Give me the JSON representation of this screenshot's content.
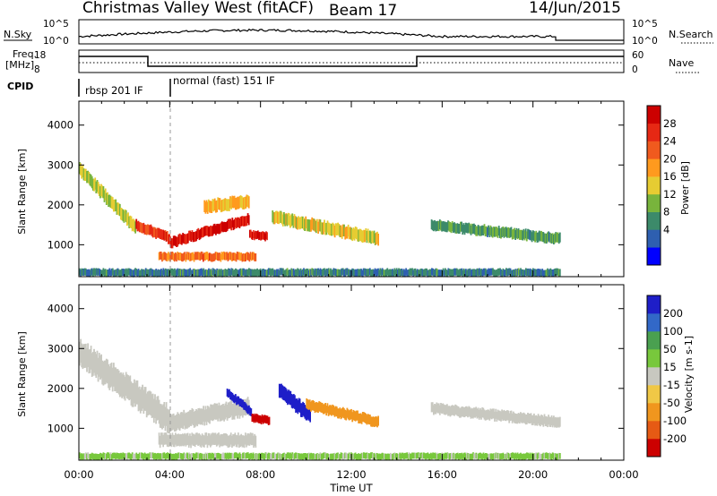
{
  "header": {
    "radar": "Christmas Valley West (fitACF)",
    "beam": "Beam 17",
    "date": "14/Jun/2015"
  },
  "top_panels": {
    "nsky_label": "N.Sky",
    "nsearch_label": "N.Search",
    "freq_label_1": "Freq.",
    "freq_label_2": "[MHz]",
    "nave_label": "Nave",
    "cpid_label": "CPID",
    "noise_ticks_left": [
      "10^5",
      "10^0"
    ],
    "noise_ticks_right": [
      "10^5",
      "10^0"
    ],
    "freq_ticks": [
      "18",
      "8"
    ],
    "nave_ticks": [
      "60",
      "0"
    ],
    "cpid_segments": [
      {
        "label": "rbsp 201 IF",
        "start_h": 0,
        "end_h": 3.7
      },
      {
        "label": "normal (fast) 151 IF",
        "start_h": 3.7,
        "end_h": 24
      }
    ]
  },
  "panels": {
    "power": {
      "ylabel": "Slant Range [km]",
      "yticks": [
        "4000",
        "3000",
        "2000",
        "1000"
      ],
      "cbar_label": "Power [dB]",
      "cbar_ticks": [
        "28",
        "24",
        "20",
        "16",
        "12",
        "8",
        "4"
      ]
    },
    "velocity": {
      "ylabel": "Slant Range [km]",
      "yticks": [
        "4000",
        "3000",
        "2000",
        "1000"
      ],
      "cbar_label": "Velocity [m s-1]",
      "cbar_ticks": [
        "200",
        "100",
        "50",
        "15",
        "-15",
        "-50",
        "-100",
        "-200"
      ]
    }
  },
  "xaxis": {
    "ticks": [
      "00:00",
      "04:00",
      "08:00",
      "12:00",
      "16:00",
      "20:00",
      "00:00"
    ],
    "label": "Time UT"
  },
  "colors": {
    "power": [
      "#0000ff",
      "#2e5fb0",
      "#3c8a6a",
      "#78b43c",
      "#e6cc32",
      "#ff9a1e",
      "#f05a1e",
      "#e62814",
      "#cc0000"
    ],
    "velocity": [
      "#1e1ec8",
      "#3268c8",
      "#4aa050",
      "#78c83c",
      "#c8c8c0",
      "#f0c846",
      "#f0961e",
      "#e65a14",
      "#cc0000"
    ]
  },
  "chart_data": [
    {
      "type": "heatmap",
      "title": "Christmas Valley West (fitACF) Beam 17 14/Jun/2015",
      "xlabel": "Time UT",
      "ylabel": "Slant Range [km]",
      "xlim": [
        0,
        24
      ],
      "ylim": [
        200,
        4600
      ],
      "colorbar": {
        "label": "Power [dB]",
        "range": [
          0,
          32
        ]
      },
      "echo_regions": [
        {
          "t0": 0.0,
          "t1": 2.5,
          "r0": 2900,
          "r1": 1400,
          "thick": 300,
          "power": 14
        },
        {
          "t0": 2.5,
          "t1": 4.0,
          "r0": 1500,
          "r1": 1150,
          "thick": 250,
          "power": 26
        },
        {
          "t0": 4.0,
          "t1": 7.5,
          "r0": 1050,
          "r1": 1650,
          "thick": 250,
          "power": 29
        },
        {
          "t0": 3.5,
          "t1": 7.8,
          "r0": 700,
          "r1": 700,
          "thick": 200,
          "power": 22
        },
        {
          "t0": 5.5,
          "t1": 7.5,
          "r0": 1950,
          "r1": 2100,
          "thick": 300,
          "power": 18
        },
        {
          "t0": 7.5,
          "t1": 8.3,
          "r0": 1250,
          "r1": 1200,
          "thick": 200,
          "power": 28
        },
        {
          "t0": 8.5,
          "t1": 13.2,
          "r0": 1700,
          "r1": 1150,
          "thick": 300,
          "power": 16
        },
        {
          "t0": 15.5,
          "t1": 21.2,
          "r0": 1500,
          "r1": 1150,
          "thick": 250,
          "power": 10
        },
        {
          "t0": 0.0,
          "t1": 21.2,
          "r0": 300,
          "r1": 300,
          "thick": 180,
          "power": 8
        }
      ]
    },
    {
      "type": "heatmap",
      "title": "",
      "xlabel": "Time UT",
      "ylabel": "Slant Range [km]",
      "xlim": [
        0,
        24
      ],
      "ylim": [
        200,
        4600
      ],
      "colorbar": {
        "label": "Velocity [m s-1]",
        "range": [
          -250,
          250
        ]
      },
      "echo_regions": [
        {
          "t0": 0.0,
          "t1": 4.0,
          "r0": 2900,
          "r1": 1200,
          "thick": 600,
          "velocity": 0
        },
        {
          "t0": 4.0,
          "t1": 7.5,
          "r0": 1150,
          "r1": 1550,
          "thick": 400,
          "velocity": 0
        },
        {
          "t0": 3.5,
          "t1": 7.8,
          "r0": 700,
          "r1": 700,
          "thick": 300,
          "velocity": 0
        },
        {
          "t0": 6.5,
          "t1": 7.6,
          "r0": 1900,
          "r1": 1400,
          "thick": 200,
          "velocity": 220
        },
        {
          "t0": 7.6,
          "t1": 8.4,
          "r0": 1250,
          "r1": 1200,
          "thick": 200,
          "velocity": -220
        },
        {
          "t0": 8.8,
          "t1": 10.2,
          "r0": 1950,
          "r1": 1300,
          "thick": 350,
          "velocity": 230
        },
        {
          "t0": 10.0,
          "t1": 13.2,
          "r0": 1600,
          "r1": 1150,
          "thick": 250,
          "velocity": -60
        },
        {
          "t0": 15.5,
          "t1": 21.2,
          "r0": 1500,
          "r1": 1150,
          "thick": 250,
          "velocity": 0
        },
        {
          "t0": 0.0,
          "t1": 21.2,
          "r0": 300,
          "r1": 300,
          "thick": 150,
          "velocity": 20
        }
      ]
    }
  ]
}
